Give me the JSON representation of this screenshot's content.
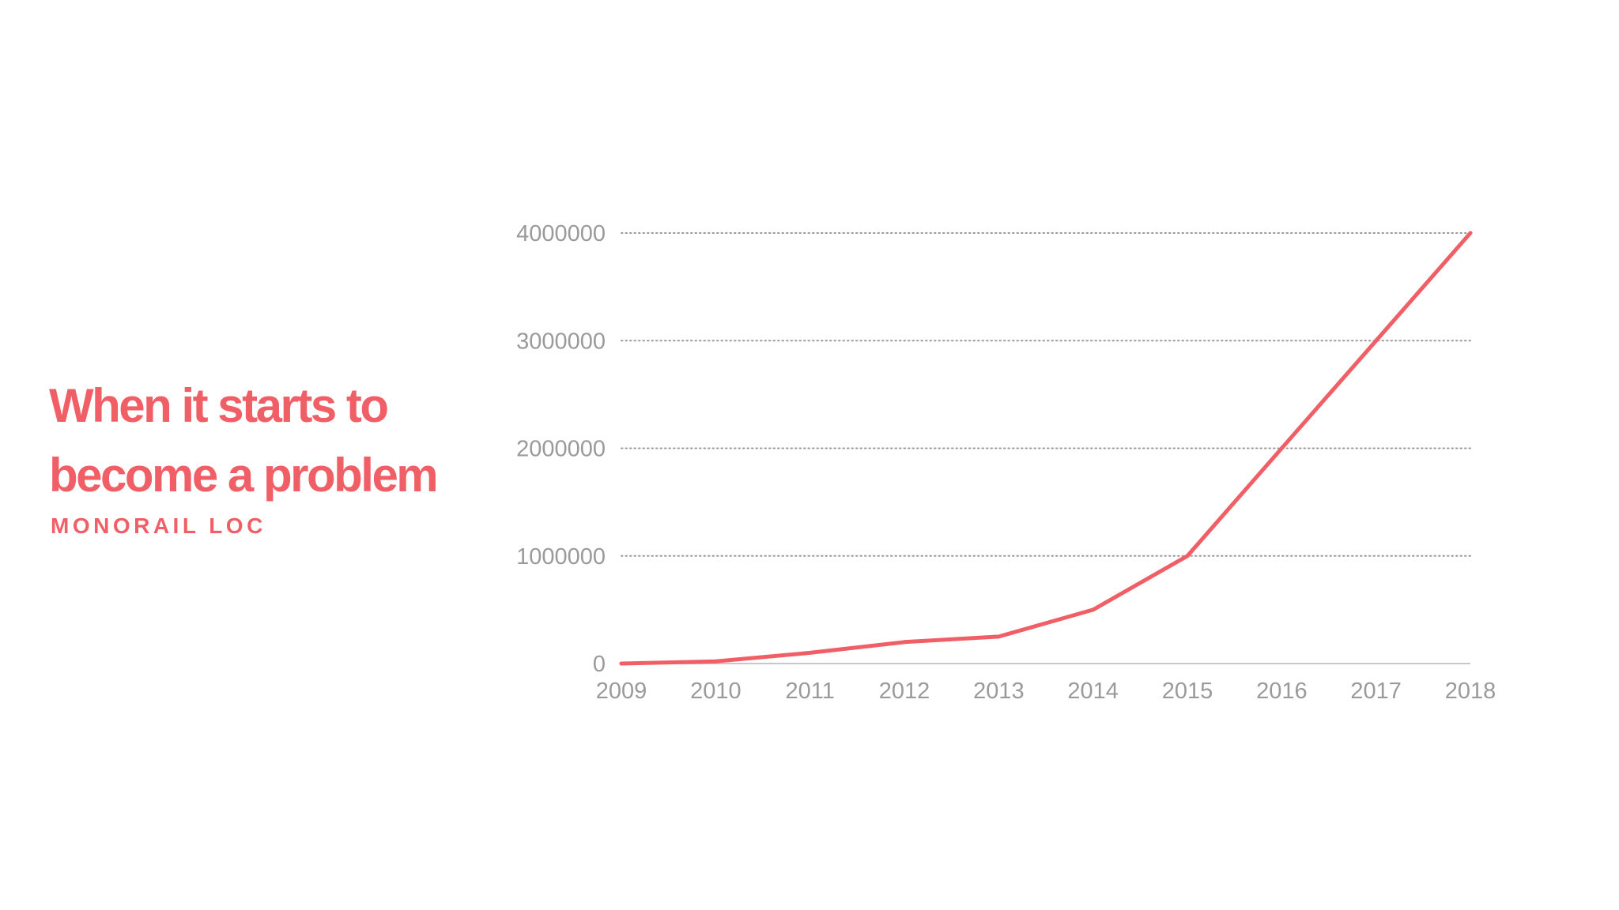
{
  "slide": {
    "title": "When it starts to become a problem",
    "subtitle": "MONORAIL LOC"
  },
  "colors": {
    "accent": "#f05f66",
    "axis_text": "#9a9a9a",
    "grid": "#9a9a9a",
    "baseline": "#c8c8c8"
  },
  "chart_data": {
    "type": "line",
    "x": [
      "2009",
      "2010",
      "2011",
      "2012",
      "2013",
      "2014",
      "2015",
      "2016",
      "2017",
      "2018"
    ],
    "series": [
      {
        "values": [
          0,
          20000,
          100000,
          200000,
          250000,
          500000,
          1000000,
          2000000,
          3000000,
          4000000
        ]
      }
    ],
    "yticks": [
      "0",
      "1000000",
      "2000000",
      "3000000",
      "4000000"
    ],
    "ylim": [
      0,
      4000000
    ],
    "grid": "dotted horizontal",
    "legend": "none"
  }
}
